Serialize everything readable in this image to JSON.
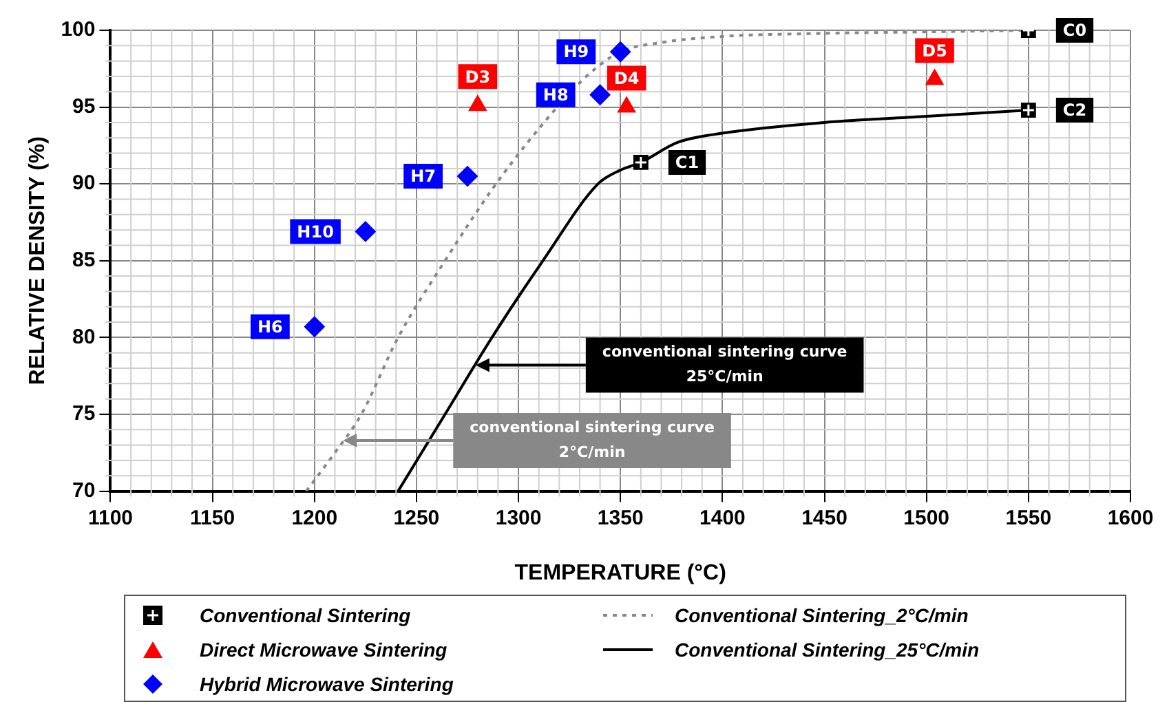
{
  "chart_data": {
    "type": "scatter",
    "xlabel": "TEMPERATURE (°C)",
    "ylabel": "RELATIVE DENSITY (%)",
    "xlim": [
      1100,
      1600
    ],
    "xticks": [
      1100,
      1150,
      1200,
      1250,
      1300,
      1350,
      1400,
      1450,
      1500,
      1550,
      1600
    ],
    "ylim": [
      70,
      100
    ],
    "yticks": [
      70,
      75,
      80,
      85,
      90,
      95,
      100
    ],
    "grid": true,
    "legend": "bottom",
    "series": [
      {
        "name": "Conventional Sintering",
        "marker": "square",
        "color": "#000000",
        "x": [
          1550,
          1360,
          1550
        ],
        "values": [
          100,
          91.4,
          94.8
        ],
        "value_labels": [
          "C0",
          "C1",
          "C2"
        ]
      },
      {
        "name": "Direct Microwave Sintering",
        "marker": "triangle",
        "color": "#ff0000",
        "x": [
          1280,
          1353,
          1504
        ],
        "values": [
          95.1,
          95,
          96.8
        ],
        "value_labels": [
          "D3",
          "D4",
          "D5"
        ]
      },
      {
        "name": "Hybrid Microwave Sintering",
        "marker": "diamond",
        "color": "#0000ff",
        "x": [
          1200,
          1275,
          1340,
          1350,
          1225
        ],
        "values": [
          80.7,
          90.5,
          95.8,
          98.6,
          86.9
        ],
        "value_labels": [
          "H6",
          "H7",
          "H8",
          "H9",
          "H10"
        ]
      },
      {
        "name": "Conventional Sintering_2°C/min",
        "type": "line",
        "line_style": "dashed",
        "color": "#888888",
        "x": [
          1196,
          1210,
          1223,
          1241,
          1264,
          1289,
          1319,
          1335,
          1350,
          1370,
          1400,
          1450,
          1500,
          1550
        ],
        "values": [
          70,
          72.5,
          75,
          80,
          85,
          90,
          95,
          97.2,
          98.6,
          99.2,
          99.6,
          99.8,
          99.9,
          100
        ]
      },
      {
        "name": "Conventional Sintering_25°C/min",
        "type": "line",
        "line_style": "solid",
        "color": "#000000",
        "x": [
          1241,
          1264,
          1287,
          1312,
          1339,
          1350,
          1360,
          1378,
          1400,
          1450,
          1500,
          1550
        ],
        "values": [
          70,
          75,
          80,
          85,
          90,
          90.9,
          91.4,
          92.7,
          93.3,
          94,
          94.4,
          94.8
        ]
      }
    ],
    "annotations": [
      {
        "text": "conventional sintering curve\n25°C/min",
        "x": 1279,
        "y": 78.2
      },
      {
        "text": "conventional sintering curve\n2°C/min",
        "x": 1214,
        "y": 73.3
      }
    ]
  }
}
